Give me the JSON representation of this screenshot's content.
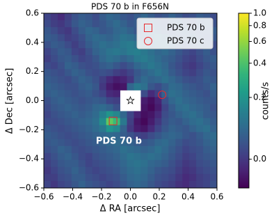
{
  "chart_data": {
    "type": "heatmap",
    "title": "PDS 70 b in F656N",
    "x_label": "Δ RA [arcsec]",
    "y_label": "Δ Dec [arcsec]",
    "xlim": [
      -0.6,
      0.6
    ],
    "ylim": [
      -0.6,
      0.6
    ],
    "xticks": [
      {
        "value": -0.6,
        "label": "−0.6"
      },
      {
        "value": -0.4,
        "label": "−0.4"
      },
      {
        "value": -0.2,
        "label": "−0.2"
      },
      {
        "value": 0,
        "label": "0.0"
      },
      0.2,
      0.4,
      0.6
    ],
    "yticks": [
      {
        "value": -0.6,
        "label": "−0.6"
      },
      {
        "value": -0.4,
        "label": "−0.4"
      },
      {
        "value": -0.2,
        "label": "−0.2"
      },
      {
        "value": 0,
        "label": "0.0"
      },
      0.2,
      0.4,
      0.6
    ],
    "colormap": "viridis",
    "colorbar": {
      "label": "counts/s",
      "clim": [
        -0.08,
        1.0
      ],
      "scale": "asinh",
      "asinh_width": 0.15,
      "ticks": [
        {
          "value": 1,
          "label": "1.0"
        },
        0.8,
        0.6,
        0.4,
        0.2,
        {
          "value": 0,
          "label": "0.0"
        }
      ]
    },
    "z": [
      [
        0.02,
        0.0,
        -0.02,
        0.01,
        0.04,
        0.06,
        0.05,
        0.03,
        0.06,
        0.08,
        0.07,
        0.05,
        0.04,
        0.06,
        0.08,
        0.06,
        0.04,
        0.05,
        0.07,
        0.05,
        0.03,
        0.04,
        0.06,
        0.05,
        0.03
      ],
      [
        0.03,
        0.01,
        0.0,
        0.02,
        0.05,
        0.07,
        0.06,
        0.04,
        0.05,
        0.07,
        0.09,
        0.07,
        0.05,
        0.06,
        0.09,
        0.08,
        0.05,
        0.04,
        0.06,
        0.07,
        0.05,
        0.03,
        0.05,
        0.06,
        0.04
      ],
      [
        0.05,
        0.03,
        0.01,
        0.0,
        0.03,
        0.06,
        0.08,
        0.07,
        0.05,
        0.06,
        0.08,
        0.09,
        0.07,
        0.05,
        0.07,
        0.09,
        0.07,
        0.05,
        0.04,
        0.06,
        0.07,
        0.05,
        0.04,
        0.05,
        0.06
      ],
      [
        0.06,
        0.05,
        0.03,
        0.01,
        0.02,
        0.04,
        0.07,
        0.09,
        0.08,
        0.07,
        0.09,
        0.11,
        0.1,
        0.08,
        0.06,
        0.08,
        0.1,
        0.08,
        0.06,
        0.05,
        0.06,
        0.07,
        0.05,
        0.04,
        0.05
      ],
      [
        0.04,
        0.06,
        0.05,
        0.03,
        0.01,
        0.03,
        0.06,
        0.08,
        0.1,
        0.09,
        0.1,
        0.12,
        0.13,
        0.11,
        0.09,
        0.08,
        0.09,
        0.1,
        0.08,
        0.06,
        0.04,
        0.05,
        0.06,
        0.05,
        0.03
      ],
      [
        0.02,
        0.04,
        0.06,
        0.05,
        0.02,
        0.01,
        0.04,
        0.07,
        0.09,
        0.11,
        0.12,
        0.11,
        0.13,
        0.14,
        0.12,
        0.1,
        0.08,
        0.09,
        0.07,
        0.05,
        0.03,
        0.02,
        0.04,
        0.06,
        0.04
      ],
      [
        0.01,
        0.03,
        0.05,
        0.06,
        0.04,
        0.02,
        0.03,
        0.05,
        0.08,
        0.1,
        0.09,
        0.07,
        0.09,
        0.12,
        0.13,
        0.11,
        0.09,
        0.07,
        0.06,
        0.04,
        0.02,
        0.01,
        0.03,
        0.05,
        0.06
      ],
      [
        0.03,
        0.02,
        0.04,
        0.07,
        0.06,
        0.04,
        0.03,
        0.04,
        0.06,
        0.07,
        0.05,
        0.03,
        0.05,
        0.08,
        0.1,
        0.12,
        0.1,
        0.08,
        0.05,
        0.03,
        0.01,
        0.0,
        0.02,
        0.04,
        0.05
      ],
      [
        0.05,
        0.04,
        0.03,
        0.05,
        0.07,
        0.06,
        0.04,
        0.03,
        0.04,
        0.03,
        0.01,
        0.0,
        0.02,
        0.05,
        0.07,
        0.09,
        0.11,
        0.09,
        0.06,
        0.04,
        0.02,
        0.01,
        0.03,
        0.05,
        0.04
      ],
      [
        0.06,
        0.05,
        0.04,
        0.03,
        0.05,
        0.07,
        0.06,
        0.04,
        0.01,
        -0.02,
        -0.04,
        -0.03,
        0.0,
        0.06,
        0.09,
        0.07,
        0.08,
        0.1,
        0.08,
        0.06,
        0.04,
        0.03,
        0.04,
        0.06,
        0.05
      ],
      [
        0.07,
        0.06,
        0.05,
        0.04,
        0.04,
        0.06,
        0.07,
        0.05,
        0.0,
        -0.04,
        -0.06,
        -0.05,
        0.08,
        0.12,
        0.1,
        0.05,
        0.03,
        0.06,
        0.09,
        0.08,
        0.06,
        0.05,
        0.04,
        0.05,
        0.07
      ],
      [
        0.06,
        0.07,
        0.06,
        0.05,
        0.04,
        0.05,
        0.06,
        0.04,
        0.02,
        -0.02,
        -0.03,
        null,
        null,
        null,
        0.03,
        -0.02,
        0.01,
        0.07,
        0.1,
        0.09,
        0.07,
        0.06,
        0.05,
        0.04,
        0.06
      ],
      [
        0.04,
        0.06,
        0.07,
        0.06,
        0.05,
        0.04,
        0.05,
        0.06,
        0.05,
        0.02,
        0.01,
        null,
        null,
        null,
        -0.04,
        -0.06,
        -0.03,
        0.04,
        0.08,
        0.1,
        0.08,
        0.07,
        0.06,
        0.05,
        0.05
      ],
      [
        0.03,
        0.05,
        0.06,
        0.07,
        0.06,
        0.05,
        0.06,
        0.08,
        0.09,
        0.07,
        0.04,
        null,
        null,
        null,
        -0.05,
        -0.07,
        -0.04,
        0.02,
        0.06,
        0.09,
        0.1,
        0.08,
        0.07,
        0.06,
        0.04
      ],
      [
        0.02,
        0.04,
        0.05,
        0.06,
        0.07,
        0.06,
        0.07,
        0.09,
        0.14,
        0.2,
        0.16,
        0.08,
        0.02,
        -0.03,
        -0.06,
        -0.05,
        -0.02,
        0.03,
        0.05,
        0.07,
        0.09,
        0.1,
        0.08,
        0.06,
        0.05
      ],
      [
        0.03,
        0.03,
        0.04,
        0.05,
        0.06,
        0.07,
        0.08,
        0.1,
        0.18,
        0.45,
        0.35,
        0.12,
        0.01,
        -0.05,
        -0.07,
        -0.04,
        0.0,
        0.04,
        0.06,
        0.05,
        0.07,
        0.09,
        0.1,
        0.08,
        0.06
      ],
      [
        0.05,
        0.04,
        0.03,
        0.04,
        0.05,
        0.06,
        0.07,
        0.09,
        0.12,
        0.2,
        0.16,
        0.07,
        0.0,
        -0.04,
        -0.05,
        -0.02,
        0.02,
        0.05,
        0.07,
        0.06,
        0.05,
        0.07,
        0.09,
        0.1,
        0.07
      ],
      [
        0.06,
        0.05,
        0.04,
        0.03,
        0.04,
        0.05,
        0.06,
        0.07,
        0.08,
        0.09,
        0.08,
        0.06,
        0.04,
        0.02,
        0.01,
        0.03,
        0.05,
        0.07,
        0.08,
        0.07,
        0.05,
        0.04,
        0.06,
        0.08,
        0.09
      ],
      [
        0.05,
        0.06,
        0.05,
        0.04,
        0.03,
        0.04,
        0.05,
        0.06,
        0.07,
        0.08,
        0.09,
        0.08,
        0.07,
        0.06,
        0.05,
        0.06,
        0.08,
        0.09,
        0.07,
        0.05,
        0.03,
        0.04,
        0.05,
        0.07,
        0.08
      ],
      [
        0.04,
        0.05,
        0.07,
        0.06,
        0.04,
        0.03,
        0.04,
        0.05,
        0.06,
        0.07,
        0.08,
        0.1,
        0.09,
        0.08,
        0.07,
        0.08,
        0.1,
        0.08,
        0.06,
        0.04,
        0.02,
        0.03,
        0.04,
        0.06,
        0.07
      ],
      [
        0.02,
        0.04,
        0.06,
        0.07,
        0.05,
        0.03,
        0.02,
        0.04,
        0.05,
        0.06,
        0.07,
        0.09,
        0.11,
        0.1,
        0.09,
        0.1,
        0.09,
        0.07,
        0.05,
        0.03,
        0.01,
        0.02,
        0.04,
        0.05,
        0.06
      ],
      [
        0.01,
        0.03,
        0.05,
        0.06,
        0.06,
        0.04,
        0.02,
        0.03,
        0.04,
        0.05,
        0.06,
        0.08,
        0.1,
        0.11,
        0.1,
        0.08,
        0.07,
        0.06,
        0.04,
        0.02,
        0.0,
        0.01,
        0.03,
        0.04,
        0.05
      ],
      [
        0.0,
        0.02,
        0.04,
        0.05,
        0.07,
        0.05,
        0.03,
        0.02,
        0.03,
        0.04,
        0.05,
        0.07,
        0.09,
        0.1,
        0.09,
        0.07,
        0.05,
        0.04,
        0.03,
        0.01,
        -0.01,
        0.0,
        0.02,
        0.03,
        0.04
      ],
      [
        0.01,
        0.01,
        0.03,
        0.04,
        0.06,
        0.06,
        0.04,
        0.03,
        0.02,
        0.03,
        0.04,
        0.06,
        0.08,
        0.09,
        0.08,
        0.06,
        0.04,
        0.03,
        0.02,
        0.0,
        -0.02,
        -0.01,
        0.01,
        0.02,
        0.03
      ],
      [
        0.02,
        0.0,
        0.02,
        0.03,
        0.05,
        0.07,
        0.05,
        0.04,
        0.03,
        0.02,
        0.03,
        0.05,
        0.07,
        0.08,
        0.07,
        0.05,
        0.03,
        0.02,
        0.01,
        -0.01,
        -0.02,
        0.0,
        0.01,
        0.02,
        0.04
      ]
    ],
    "star": {
      "x": 0,
      "y": 0
    },
    "markers": [
      {
        "name": "PDS 70 b",
        "x": -0.12,
        "y": -0.14,
        "shape": "square",
        "color": "#e8282b"
      },
      {
        "name": "PDS 70 c",
        "x": 0.22,
        "y": 0.04,
        "shape": "circle",
        "color": "#e8282b"
      }
    ],
    "annotation": {
      "text": "PDS 70 b",
      "x": -0.08,
      "y": -0.28,
      "color": "#ffffff"
    }
  }
}
